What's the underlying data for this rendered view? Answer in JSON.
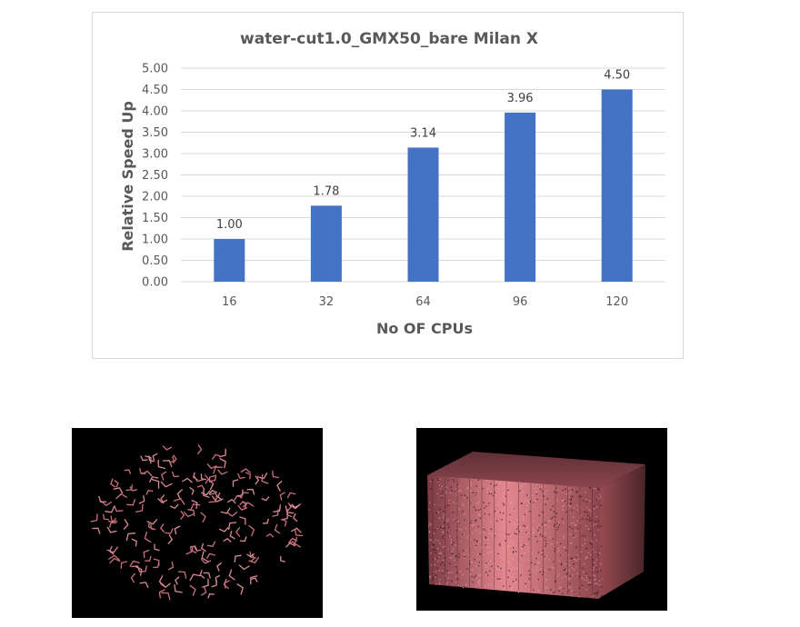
{
  "chart_data": {
    "type": "bar",
    "title": "water-cut1.0_GMX50_bare Milan X",
    "xlabel": "No OF CPUs",
    "ylabel": "Relative Speed Up",
    "categories": [
      "16",
      "32",
      "64",
      "96",
      "120"
    ],
    "values": [
      1.0,
      1.78,
      3.14,
      3.96,
      4.5
    ],
    "value_labels": [
      "1.00",
      "1.78",
      "3.14",
      "3.96",
      "4.50"
    ],
    "ylim": [
      0,
      5
    ],
    "yticks": [
      "0.00",
      "0.50",
      "1.00",
      "1.50",
      "2.00",
      "2.50",
      "3.00",
      "3.50",
      "4.00",
      "4.50",
      "5.00"
    ],
    "grid": true,
    "legend": "none",
    "colors": {
      "bar": "#4472c4",
      "grid": "#d9d9d9",
      "text": "#595959"
    }
  },
  "images": {
    "left": "molecular-dynamics-render-scattered-water-molecules",
    "right": "molecular-dynamics-render-water-box"
  }
}
